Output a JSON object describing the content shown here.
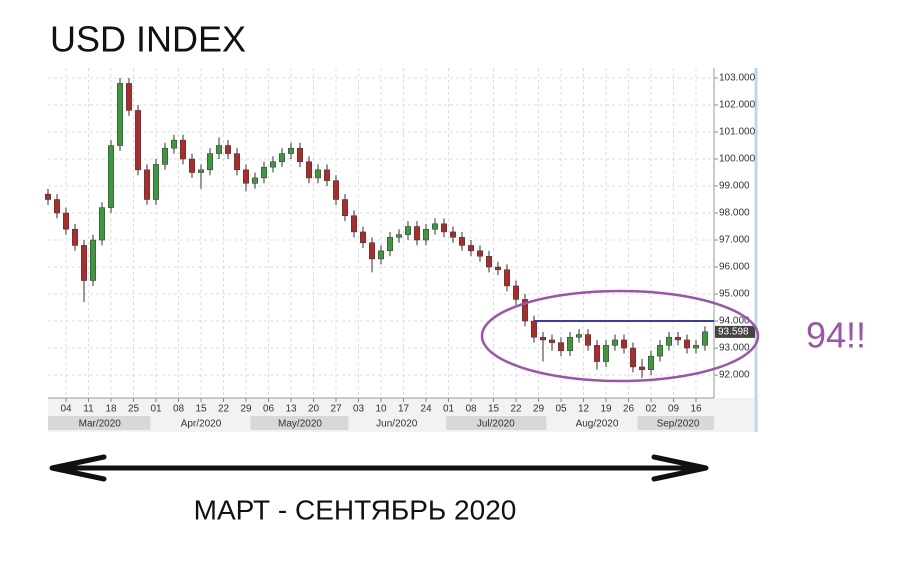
{
  "chart_data": {
    "type": "candlestick",
    "title": "USD INDEX",
    "x_label": "МАРТ - СЕНТЯБРЬ 2020",
    "x": [
      -4,
      -2,
      0,
      2,
      4,
      6,
      8,
      10,
      12,
      14,
      16,
      18,
      20,
      22,
      24,
      26,
      28,
      30,
      32,
      34,
      36,
      38,
      40,
      42,
      44,
      46,
      48,
      50,
      52,
      54,
      56,
      58,
      60,
      62,
      64,
      66,
      68,
      70,
      72,
      74,
      76,
      78,
      80,
      82,
      84,
      86,
      88,
      90,
      92,
      94,
      96,
      98,
      100,
      102,
      104,
      106,
      108,
      110,
      112,
      114,
      116,
      118,
      120,
      122,
      124,
      126,
      128,
      130,
      132,
      134,
      136,
      138,
      140,
      142
    ],
    "open": [
      98.7,
      98.5,
      98.0,
      97.4,
      96.8,
      95.5,
      97.0,
      98.2,
      100.5,
      102.8,
      101.8,
      99.6,
      98.5,
      99.8,
      100.4,
      100.7,
      100.0,
      99.5,
      99.6,
      100.2,
      100.5,
      100.2,
      99.6,
      99.1,
      99.3,
      99.7,
      99.9,
      100.2,
      100.4,
      99.9,
      99.3,
      99.6,
      99.2,
      98.5,
      97.9,
      97.3,
      96.9,
      96.3,
      96.6,
      97.1,
      97.2,
      97.5,
      97.0,
      97.4,
      97.6,
      97.3,
      97.1,
      96.8,
      96.6,
      96.4,
      96.0,
      95.9,
      95.3,
      94.8,
      94.0,
      93.4,
      93.3,
      93.2,
      92.9,
      93.4,
      93.5,
      93.1,
      92.5,
      93.1,
      93.3,
      93.0,
      92.3,
      92.2,
      92.7,
      93.1,
      93.4,
      93.3,
      93.0,
      93.1
    ],
    "high": [
      98.9,
      98.7,
      98.2,
      97.6,
      97.0,
      97.2,
      98.4,
      100.7,
      103.0,
      103.0,
      102.0,
      99.8,
      100.0,
      100.6,
      100.9,
      100.9,
      100.2,
      99.8,
      100.4,
      100.8,
      100.7,
      100.4,
      99.8,
      99.5,
      99.9,
      100.1,
      100.4,
      100.6,
      100.6,
      100.1,
      99.8,
      99.8,
      99.4,
      98.7,
      98.1,
      97.5,
      97.1,
      96.8,
      97.3,
      97.4,
      97.7,
      97.7,
      97.6,
      97.8,
      97.8,
      97.5,
      97.3,
      97.0,
      96.8,
      96.6,
      96.2,
      96.1,
      95.5,
      95.0,
      94.2,
      93.6,
      93.5,
      93.4,
      93.6,
      93.7,
      93.7,
      93.3,
      93.3,
      93.5,
      93.5,
      93.2,
      92.6,
      92.9,
      93.3,
      93.6,
      93.6,
      93.5,
      93.3,
      93.8
    ],
    "low": [
      98.3,
      97.8,
      97.2,
      96.6,
      94.7,
      95.3,
      96.8,
      98.0,
      100.3,
      101.6,
      99.4,
      98.3,
      98.3,
      99.6,
      100.2,
      99.8,
      99.3,
      98.9,
      99.4,
      100.0,
      100.0,
      99.4,
      98.8,
      98.9,
      99.1,
      99.5,
      99.7,
      100.0,
      99.7,
      99.1,
      99.1,
      99.0,
      98.3,
      97.7,
      97.1,
      96.7,
      95.8,
      96.1,
      96.4,
      96.9,
      97.0,
      96.8,
      96.8,
      97.2,
      97.1,
      96.9,
      96.6,
      96.4,
      96.2,
      95.8,
      95.7,
      95.1,
      94.6,
      93.8,
      93.2,
      92.5,
      92.9,
      92.7,
      92.7,
      93.2,
      92.9,
      92.2,
      92.3,
      92.9,
      92.8,
      92.1,
      91.9,
      92.0,
      92.5,
      92.9,
      93.1,
      92.8,
      92.8,
      92.9
    ],
    "close": [
      98.5,
      98.0,
      97.4,
      96.8,
      95.5,
      97.0,
      98.2,
      100.5,
      102.8,
      101.8,
      99.6,
      98.5,
      99.8,
      100.4,
      100.7,
      100.0,
      99.5,
      99.6,
      100.2,
      100.5,
      100.2,
      99.6,
      99.1,
      99.3,
      99.7,
      99.9,
      100.2,
      100.4,
      99.9,
      99.3,
      99.6,
      99.2,
      98.5,
      97.9,
      97.3,
      96.9,
      96.3,
      96.6,
      97.1,
      97.2,
      97.5,
      97.0,
      97.4,
      97.6,
      97.3,
      97.1,
      96.8,
      96.6,
      96.4,
      96.0,
      95.9,
      95.3,
      94.8,
      94.0,
      93.4,
      93.3,
      93.2,
      92.9,
      93.4,
      93.5,
      93.1,
      92.5,
      93.1,
      93.3,
      93.0,
      92.3,
      92.2,
      92.7,
      93.1,
      93.4,
      93.3,
      93.0,
      93.1,
      93.6
    ],
    "up_color": "#3c9a3c",
    "down_color": "#b02a2a",
    "xlim": [
      -4,
      144
    ],
    "ylim": [
      91.15,
      103.37
    ],
    "yticks": [
      {
        "value": 92,
        "label": "92.000"
      },
      {
        "value": 93,
        "label": "93.000"
      },
      {
        "value": 94,
        "label": "94.000"
      },
      {
        "value": 95,
        "label": "95.000"
      },
      {
        "value": 96,
        "label": "96.000"
      },
      {
        "value": 97,
        "label": "97.000"
      },
      {
        "value": 98,
        "label": "98.000"
      },
      {
        "value": 99,
        "label": "99.000"
      },
      {
        "value": 100,
        "label": "100.000"
      },
      {
        "value": 101,
        "label": "101.000"
      },
      {
        "value": 102,
        "label": "102.000"
      },
      {
        "value": 103,
        "label": "103.000"
      }
    ],
    "xticks": [
      {
        "value": 0,
        "label": "04"
      },
      {
        "value": 5,
        "label": "11"
      },
      {
        "value": 10,
        "label": "18"
      },
      {
        "value": 15,
        "label": "25"
      },
      {
        "value": 20,
        "label": "01"
      },
      {
        "value": 25,
        "label": "08"
      },
      {
        "value": 30,
        "label": "15"
      },
      {
        "value": 35,
        "label": "22"
      },
      {
        "value": 40,
        "label": "29"
      },
      {
        "value": 45,
        "label": "06"
      },
      {
        "value": 50,
        "label": "13"
      },
      {
        "value": 55,
        "label": "20"
      },
      {
        "value": 60,
        "label": "27"
      },
      {
        "value": 65,
        "label": "03"
      },
      {
        "value": 70,
        "label": "10"
      },
      {
        "value": 75,
        "label": "17"
      },
      {
        "value": 80,
        "label": "24"
      },
      {
        "value": 85,
        "label": "01"
      },
      {
        "value": 90,
        "label": "08"
      },
      {
        "value": 95,
        "label": "15"
      },
      {
        "value": 100,
        "label": "22"
      },
      {
        "value": 105,
        "label": "29"
      },
      {
        "value": 110,
        "label": "05"
      },
      {
        "value": 115,
        "label": "12"
      },
      {
        "value": 120,
        "label": "19"
      },
      {
        "value": 125,
        "label": "26"
      },
      {
        "value": 130,
        "label": "02"
      },
      {
        "value": 135,
        "label": "09"
      },
      {
        "value": 140,
        "label": "16"
      }
    ],
    "months": [
      {
        "value": 7.5,
        "label": "Mar/2020"
      },
      {
        "value": 30,
        "label": "Apr/2020"
      },
      {
        "value": 52,
        "label": "May/2020"
      },
      {
        "value": 73.5,
        "label": "Jun/2020"
      },
      {
        "value": 95.5,
        "label": "Jul/2020"
      },
      {
        "value": 118,
        "label": "Aug/2020"
      },
      {
        "value": 136,
        "label": "Sep/2020"
      }
    ],
    "grid": true,
    "level": {
      "value": 94,
      "from_x": 104,
      "color": "#3a3aa8"
    },
    "last_price": {
      "value": 93.598,
      "label": "93.598"
    },
    "annotation": {
      "text": "94!!",
      "color": "#9b55a8"
    }
  }
}
